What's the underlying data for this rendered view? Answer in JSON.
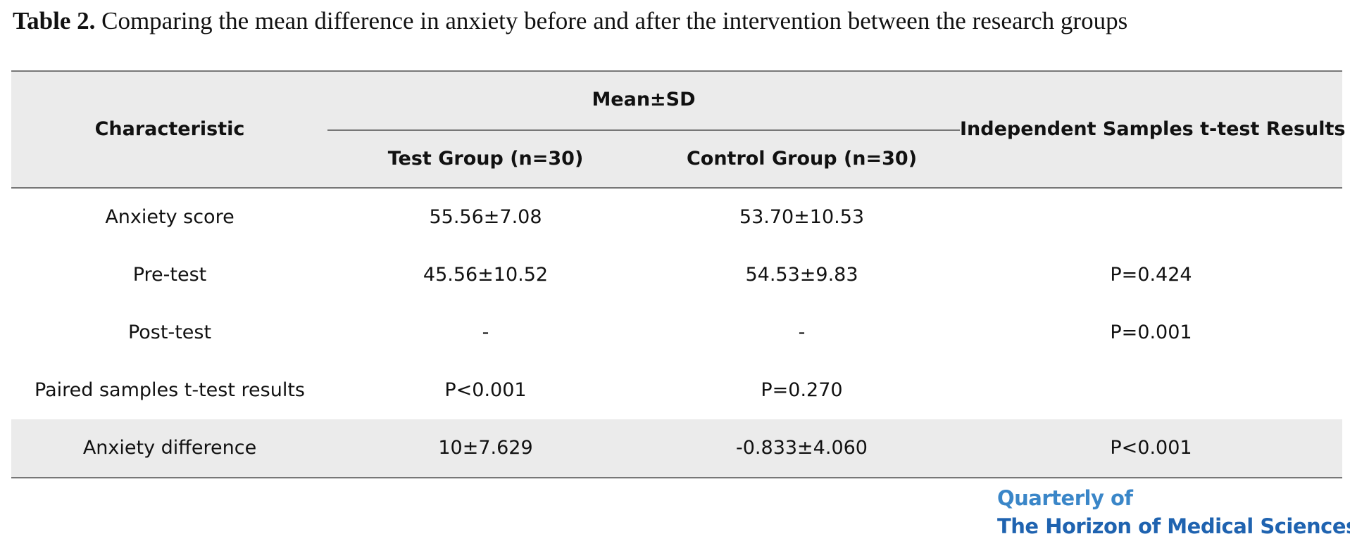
{
  "caption": {
    "label": "Table 2.",
    "text": " Comparing the mean difference in anxiety before and after the intervention between the research groups"
  },
  "table": {
    "headers": {
      "characteristic": "Characteristic",
      "mean_sd": "Mean±SD",
      "test_group": "Test Group (n=30)",
      "control_group": "Control Group (n=30)",
      "independent": "Independent Samples t-test Results"
    },
    "rows": [
      {
        "characteristic": "Anxiety score",
        "test": "55.56±7.08",
        "control": "53.70±10.53",
        "independent": ""
      },
      {
        "characteristic": "Pre-test",
        "test": "45.56±10.52",
        "control": "54.53±9.83",
        "independent": "P=0.424"
      },
      {
        "characteristic": "Post-test",
        "test": "-",
        "control": "-",
        "independent": "P=0.001"
      },
      {
        "characteristic": "Paired samples t-test results",
        "test": "P<0.001",
        "control": "P=0.270",
        "independent": ""
      },
      {
        "characteristic": "Anxiety difference",
        "test": "10±7.629",
        "control": "-0.833±4.060",
        "independent": "P<0.001"
      }
    ]
  },
  "brand": {
    "line1": "Quarterly of",
    "line2": "The Horizon of Medical Sciences"
  },
  "colors": {
    "header_band": "#ebebeb",
    "rule": "#777777",
    "brand_light": "#3a86c8",
    "brand_dark": "#1f63b0"
  }
}
